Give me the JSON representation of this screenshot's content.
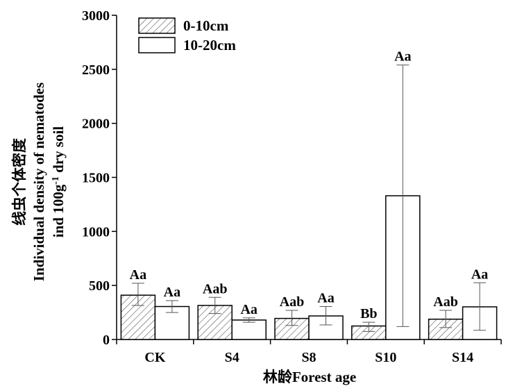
{
  "chart_data": {
    "type": "bar",
    "title": "",
    "xlabel": "林龄Forest age",
    "ylabel_lines": [
      "线虫个体密度",
      "Individual density of nematodes",
      "ind 100g",
      "-1",
      " dry soil"
    ],
    "categories": [
      "CK",
      "S4",
      "S8",
      "S10",
      "S14"
    ],
    "ylim": [
      0,
      3000
    ],
    "yticks": [
      0,
      500,
      1000,
      1500,
      2000,
      2500,
      3000
    ],
    "yticklabels": [
      "0",
      "500",
      "1000",
      "1500",
      "2000",
      "2500",
      "3000"
    ],
    "legend_position": "top-left",
    "series": [
      {
        "name": "0-10cm",
        "pattern": "hatched",
        "values": [
          410,
          315,
          195,
          125,
          188
        ],
        "error_low": [
          315,
          240,
          130,
          75,
          110
        ],
        "error_high": [
          520,
          390,
          270,
          160,
          270
        ],
        "sig_labels": [
          "Aa",
          "Aab",
          "Aab",
          "Bb",
          "Aab"
        ]
      },
      {
        "name": "10-20cm",
        "pattern": "open",
        "values": [
          305,
          180,
          218,
          1330,
          302
        ],
        "error_low": [
          250,
          160,
          135,
          120,
          85
        ],
        "error_high": [
          360,
          200,
          305,
          2540,
          525
        ],
        "sig_labels": [
          "Aa",
          "Aa",
          "Aa",
          "Aa",
          "Aa"
        ]
      }
    ]
  }
}
